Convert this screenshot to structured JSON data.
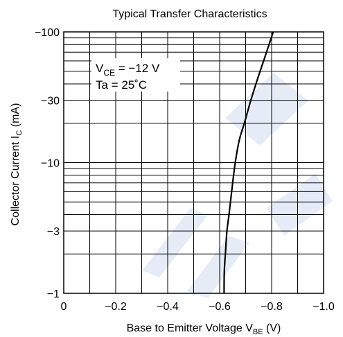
{
  "chart_data": {
    "type": "line",
    "title": "Typical Transfer Characteristics",
    "xlabel": {
      "main": "Base to Emitter Voltage  V",
      "sub": "BE",
      "unit": "  (V)"
    },
    "ylabel": {
      "main": "Collector Current  I",
      "sub": "C",
      "unit": "  (mA)"
    },
    "xlim": [
      0,
      -1.0
    ],
    "ylim": [
      -1,
      -100
    ],
    "yscale": "log",
    "grid": true,
    "x_tick_labels": [
      {
        "value": 0,
        "label": "0"
      },
      {
        "value": -0.2,
        "label": "−0.2"
      },
      {
        "value": -0.4,
        "label": "−0.4"
      },
      {
        "value": -0.6,
        "label": "−0.6"
      },
      {
        "value": -0.8,
        "label": "−0.8"
      },
      {
        "value": -1.0,
        "label": "−1.0"
      }
    ],
    "y_tick_labels": [
      {
        "value": -1,
        "label": "−1"
      },
      {
        "value": -3,
        "label": "−3"
      },
      {
        "value": -10,
        "label": "−10"
      },
      {
        "value": -30,
        "label": "−30"
      },
      {
        "value": -100,
        "label": "−100"
      }
    ],
    "annotation": {
      "line1_main": "V",
      "line1_sub": "CE",
      "line1_rest": " = −12 V",
      "line2": "Ta = 25˚C"
    },
    "series": [
      {
        "color": "#000000",
        "x": [
          -0.617,
          -0.618,
          -0.622,
          -0.628,
          -0.636,
          -0.646,
          -0.66,
          -0.676,
          -0.695,
          -0.72,
          -0.748,
          -0.775,
          -0.806
        ],
        "y": [
          -1,
          -1.5,
          -2,
          -3,
          -4,
          -6,
          -10,
          -15,
          -20,
          -30,
          -45,
          -65,
          -100
        ]
      }
    ]
  }
}
